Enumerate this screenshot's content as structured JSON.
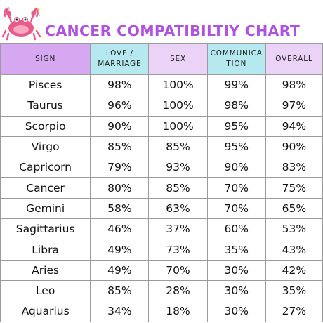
{
  "title": "CANCER COMPATIBILTIY CHART",
  "logo_icon": "cancer-crab-icon",
  "colors": {
    "title": "#b052e0",
    "sign_header": "#d7a8f2",
    "teal_header": "#b5e9ef",
    "lavender_header": "#ebd3f7",
    "crab": "#e85a8a"
  },
  "headers": {
    "sign": "SIGN",
    "love_line1": "LOVE /",
    "love_line2": "MARRIAGE",
    "sex": "SEX",
    "comm_line1": "COMMUNICA",
    "comm_line2": "TION",
    "overall": "OVERALL"
  },
  "rows": [
    {
      "sign": "Pisces",
      "love": "98%",
      "sex": "100%",
      "communication": "99%",
      "overall": "98%"
    },
    {
      "sign": "Taurus",
      "love": "96%",
      "sex": "100%",
      "communication": "98%",
      "overall": "97%"
    },
    {
      "sign": "Scorpio",
      "love": "90%",
      "sex": "100%",
      "communication": "95%",
      "overall": "94%"
    },
    {
      "sign": "Virgo",
      "love": "85%",
      "sex": "85%",
      "communication": "95%",
      "overall": "90%"
    },
    {
      "sign": "Capricorn",
      "love": "79%",
      "sex": "93%",
      "communication": "90%",
      "overall": "83%"
    },
    {
      "sign": "Cancer",
      "love": "80%",
      "sex": "85%",
      "communication": "70%",
      "overall": "75%"
    },
    {
      "sign": "Gemini",
      "love": "58%",
      "sex": "63%",
      "communication": "70%",
      "overall": "65%"
    },
    {
      "sign": "Sagittarius",
      "love": "46%",
      "sex": "37%",
      "communication": "60%",
      "overall": "53%"
    },
    {
      "sign": "Libra",
      "love": "49%",
      "sex": "73%",
      "communication": "35%",
      "overall": "43%"
    },
    {
      "sign": "Aries",
      "love": "49%",
      "sex": "70%",
      "communication": "30%",
      "overall": "42%"
    },
    {
      "sign": "Leo",
      "love": "85%",
      "sex": "28%",
      "communication": "30%",
      "overall": "35%"
    },
    {
      "sign": "Aquarius",
      "love": "34%",
      "sex": "18%",
      "communication": "30%",
      "overall": "27%"
    }
  ]
}
